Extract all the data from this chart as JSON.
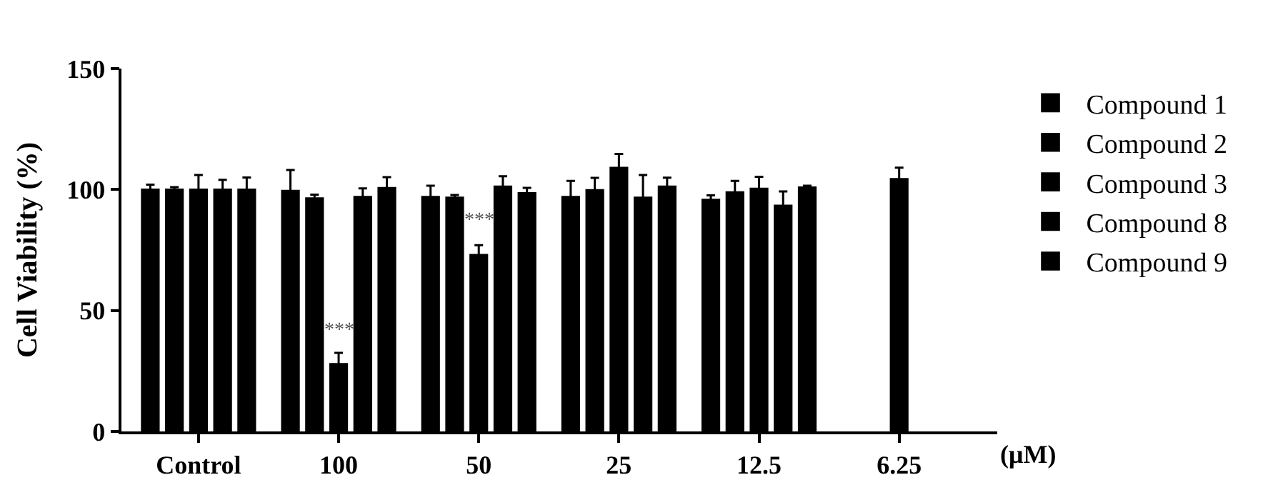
{
  "chart_data": {
    "type": "bar",
    "ylabel": "Cell Viability (%)",
    "xlabel": "(μM)",
    "categories": [
      "Control",
      "100",
      "50",
      "25",
      "12.5",
      "6.25"
    ],
    "series": [
      {
        "name": "Compound 1",
        "color": "#000000",
        "values": [
          100,
          99.5,
          97,
          97,
          95.8,
          null
        ],
        "errors": [
          2,
          8.6,
          4.6,
          6.6,
          1.8,
          null
        ]
      },
      {
        "name": "Compound 2",
        "color": "#000000",
        "values": [
          100,
          96.4,
          96.7,
          99.8,
          98.9,
          null
        ],
        "errors": [
          1,
          1.5,
          1,
          5,
          4.7,
          null
        ]
      },
      {
        "name": "Compound 3",
        "color": "#000000",
        "values": [
          100,
          27.9,
          73,
          109,
          100.4,
          104.4
        ],
        "errors": [
          6,
          4.6,
          4,
          5.7,
          4.9,
          4.6
        ]
      },
      {
        "name": "Compound 8",
        "color": "#000000",
        "values": [
          100,
          97,
          101.3,
          96.7,
          93.4,
          null
        ],
        "errors": [
          4,
          3.5,
          4.2,
          9.3,
          5.8,
          null
        ]
      },
      {
        "name": "Compound 9",
        "color": "#000000",
        "values": [
          100,
          100.7,
          98.5,
          101.3,
          100.9,
          null
        ],
        "errors": [
          5,
          4.4,
          2.2,
          3.6,
          0.7,
          null
        ]
      }
    ],
    "ylim": [
      0,
      150
    ],
    "yticks": [
      0,
      50,
      100,
      150
    ],
    "legend": "right",
    "annotations": [
      {
        "text": "***",
        "x": "100",
        "y": 27.9
      },
      {
        "text": "***",
        "x": "50",
        "y": 73
      }
    ]
  }
}
